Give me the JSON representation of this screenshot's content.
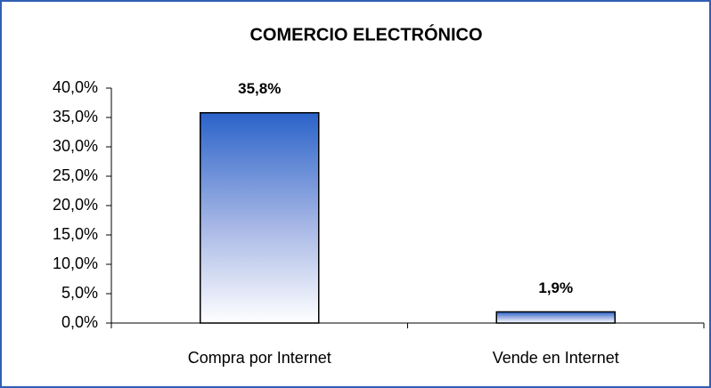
{
  "chart_data": {
    "type": "bar",
    "title": "COMERCIO ELECTRÓNICO",
    "categories": [
      "Compra por Internet",
      "Vende en Internet"
    ],
    "values": [
      35.8,
      1.9
    ],
    "value_labels": [
      "35,8%",
      "1,9%"
    ],
    "color": "#2a63c9",
    "ylim": [
      0,
      40
    ],
    "yticks": [
      {
        "value": 0,
        "label": "0,0%"
      },
      {
        "value": 5,
        "label": "5,0%"
      },
      {
        "value": 10,
        "label": "10,0%"
      },
      {
        "value": 15,
        "label": "15,0%"
      },
      {
        "value": 20,
        "label": "20,0%"
      },
      {
        "value": 25,
        "label": "25,0%"
      },
      {
        "value": 30,
        "label": "30,0%"
      },
      {
        "value": 35,
        "label": "35,0%"
      },
      {
        "value": 40,
        "label": "40,0%"
      }
    ],
    "grid": false
  }
}
